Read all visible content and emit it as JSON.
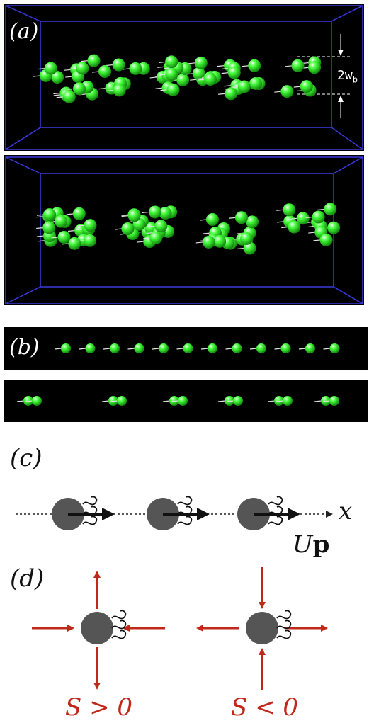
{
  "panel_a": {
    "label": "(a)",
    "width_label_main": "2w",
    "width_label_sub": "b"
  },
  "panel_b": {
    "label": "(b)"
  },
  "panel_c": {
    "label": "(c)",
    "axis_label": "x",
    "velocity_label_u": "U",
    "velocity_label_p": "p"
  },
  "panel_d": {
    "label": "(d)",
    "left_caption": "S > 0",
    "right_caption": "S < 0"
  },
  "colors": {
    "particle_green": "#3ee83a",
    "swimmer_gray": "#555555",
    "arrow_red": "#c0281a",
    "box_blue": "#3030d0"
  }
}
